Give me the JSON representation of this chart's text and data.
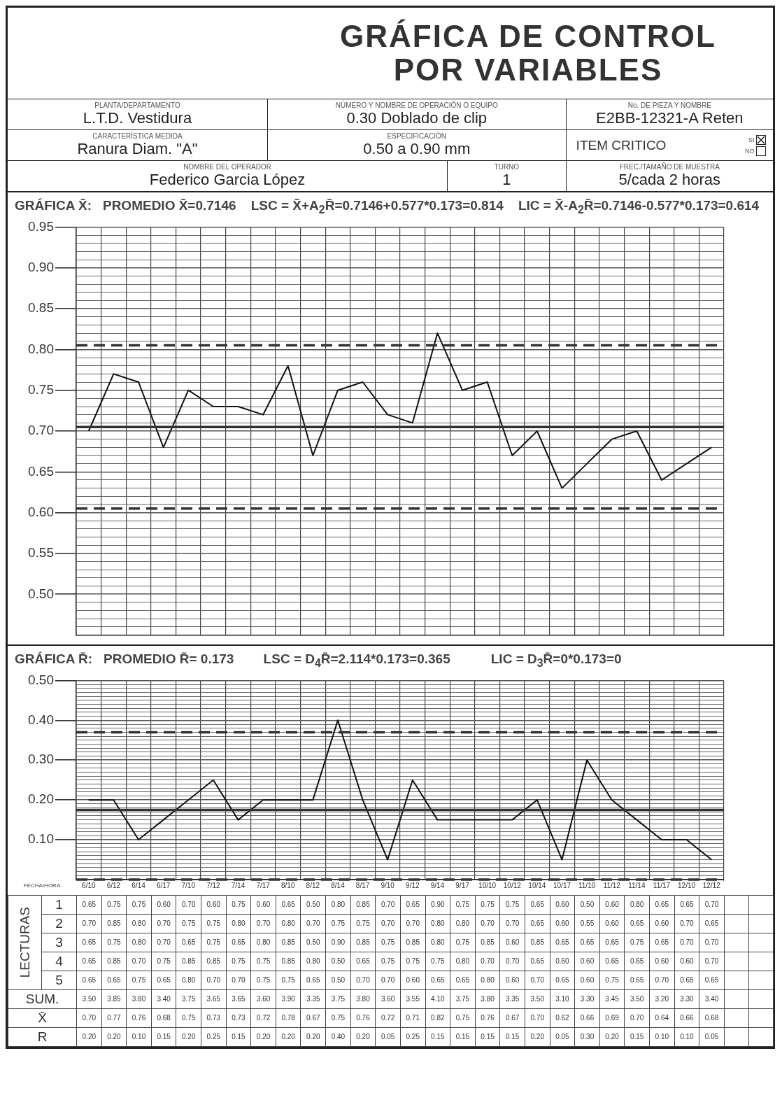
{
  "chart_data": [
    {
      "type": "other",
      "title": "GRÁFICA DE CONTROL POR VARIABLES",
      "annotations": [
        "PLANTA/DEPARTAMENTO",
        "L.T.D. Vestidura",
        "NÚMERO Y NOMBRE DE OPERACIÓN O EQUIPO",
        "0.30 Doblado de clip",
        "No. DE PIEZA Y NOMBRE",
        "E2BB-12321-A Reten",
        "CARACTERÍSTICA MEDIDA",
        "Ranura Diam. \"A\"",
        "ESPECIFICACIÓN",
        "0.50 a 0.90 mm",
        "ITEM CRITICO",
        "SI",
        "NO",
        "NOMBRE DEL OPERADOR",
        "Federico Garcia López",
        "TURNO",
        "1",
        "FREC./TAMAÑO DE MUESTRA",
        "5/cada 2 horas"
      ]
    },
    {
      "type": "line",
      "title": "GRÁFICA X̄:   PROMEDIO X̄=0.7146    LSC = X̄+A$_{2}$R̄=0.7146+0.577*0.173=0.814    LIC = X̄-A$_{2}$R̄=0.7146-0.577*0.173=0.614",
      "categories": [
        null,
        null,
        null,
        null,
        null,
        null,
        null,
        null,
        null,
        null,
        null,
        null,
        null,
        null,
        null,
        null,
        null,
        null,
        null,
        null,
        null,
        null,
        null,
        null,
        null,
        null
      ],
      "tick_labels": "y",
      "grid": true,
      "marker": "none",
      "line_style": "solid",
      "series": [
        {
          "color": "#111111",
          "values": [
            0.7,
            0.77,
            0.76,
            0.68,
            0.75,
            0.73,
            0.73,
            0.72,
            0.78,
            0.67,
            0.75,
            0.76,
            0.72,
            0.71,
            0.82,
            0.75,
            0.76,
            0.67,
            0.7,
            0.63,
            0.66,
            0.69,
            0.7,
            0.64,
            0.66,
            0.68
          ]
        }
      ],
      "ylim": [
        0.45,
        0.95
      ],
      "yticks": [
        {
          "value": 0.45,
          "label": null
        },
        {
          "value": 0.46,
          "label": null
        },
        {
          "value": 0.47,
          "label": null
        },
        {
          "value": 0.48,
          "label": null
        },
        {
          "value": 0.49,
          "label": null
        },
        {
          "value": 0.5,
          "label": "0.50"
        },
        {
          "value": 0.51,
          "label": null
        },
        {
          "value": 0.52,
          "label": null
        },
        {
          "value": 0.53,
          "label": null
        },
        {
          "value": 0.54,
          "label": null
        },
        0.55,
        {
          "value": 0.56,
          "label": null
        },
        {
          "value": 0.57,
          "label": null
        },
        {
          "value": 0.58,
          "label": null
        },
        {
          "value": 0.59,
          "label": null
        },
        {
          "value": 0.6,
          "label": "0.60"
        },
        {
          "value": 0.61,
          "label": null
        },
        {
          "value": 0.62,
          "label": null
        },
        {
          "value": 0.63,
          "label": null
        },
        {
          "value": 0.64,
          "label": null
        },
        0.65,
        {
          "value": 0.66,
          "label": null
        },
        {
          "value": 0.67,
          "label": null
        },
        {
          "value": 0.68,
          "label": null
        },
        {
          "value": 0.69,
          "label": null
        },
        {
          "value": 0.7,
          "label": "0.70"
        },
        {
          "value": 0.71,
          "label": null
        },
        {
          "value": 0.72,
          "label": null
        },
        {
          "value": 0.73,
          "label": null
        },
        {
          "value": 0.74,
          "label": null
        },
        0.75,
        {
          "value": 0.76,
          "label": null
        },
        {
          "value": 0.77,
          "label": null
        },
        {
          "value": 0.78,
          "label": null
        },
        {
          "value": 0.79,
          "label": null
        },
        {
          "value": 0.8,
          "label": "0.80"
        },
        {
          "value": 0.81,
          "label": null
        },
        {
          "value": 0.82,
          "label": null
        },
        {
          "value": 0.83,
          "label": null
        },
        {
          "value": 0.84,
          "label": null
        },
        0.85,
        {
          "value": 0.86,
          "label": null
        },
        {
          "value": 0.87,
          "label": null
        },
        {
          "value": 0.88,
          "label": null
        },
        {
          "value": 0.89,
          "label": null
        },
        {
          "value": 0.9,
          "label": "0.90"
        },
        {
          "value": 0.91,
          "label": null
        },
        {
          "value": 0.92,
          "label": null
        },
        {
          "value": 0.93,
          "label": null
        },
        {
          "value": 0.94,
          "label": null
        },
        0.95
      ],
      "ref_lines": [
        {
          "axis": "y",
          "value": 0.705,
          "line_style": "solid",
          "color": "#333333"
        },
        {
          "axis": "y",
          "value": 0.805,
          "line_style": "dashed",
          "color": "#333333"
        },
        {
          "axis": "y",
          "value": 0.605,
          "line_style": "dashed",
          "color": "#333333"
        }
      ]
    },
    {
      "type": "line",
      "title": "GRÁFICA R̄:   PROMEDIO R̄= 0.173        LSC = D$_{4}$R̄=2.114*0.173=0.365           LIC = D$_{3}$R̄=0*0.173=0",
      "xlabel": "FECHA/HORA",
      "categories": [
        "6/10",
        "6/12",
        "6/14",
        "6/17",
        "7/10",
        "7/12",
        "7/14",
        "7/17",
        "8/10",
        "8/12",
        "8/14",
        "8/17",
        "9/10",
        "9/12",
        "9/14",
        "9/17",
        "10/10",
        "10/12",
        "10/14",
        "10/17",
        "11/10",
        "11/12",
        "11/14",
        "11/17",
        "12/10",
        "12/12"
      ],
      "grid": true,
      "marker": "none",
      "line_style": "solid",
      "series": [
        {
          "color": "#111111",
          "values": [
            0.2,
            0.2,
            0.1,
            0.15,
            0.2,
            0.25,
            0.15,
            0.2,
            0.2,
            0.2,
            0.4,
            0.2,
            0.05,
            0.25,
            0.15,
            0.15,
            0.15,
            0.15,
            0.2,
            0.05,
            0.3,
            0.2,
            0.15,
            0.1,
            0.1,
            0.05
          ]
        }
      ],
      "ylim": [
        0,
        0.5
      ],
      "yticks": [
        {
          "value": 0,
          "label": null
        },
        {
          "value": 0.01,
          "label": null
        },
        {
          "value": 0.02,
          "label": null
        },
        {
          "value": 0.03,
          "label": null
        },
        {
          "value": 0.04,
          "label": null
        },
        {
          "value": 0.05,
          "label": null
        },
        {
          "value": 0.06,
          "label": null
        },
        {
          "value": 0.07,
          "label": null
        },
        {
          "value": 0.08,
          "label": null
        },
        {
          "value": 0.09,
          "label": null
        },
        {
          "value": 0.1,
          "label": "0.10"
        },
        {
          "value": 0.11,
          "label": null
        },
        {
          "value": 0.12,
          "label": null
        },
        {
          "value": 0.13,
          "label": null
        },
        {
          "value": 0.14,
          "label": null
        },
        {
          "value": 0.15,
          "label": null
        },
        {
          "value": 0.16,
          "label": null
        },
        {
          "value": 0.17,
          "label": null
        },
        {
          "value": 0.18,
          "label": null
        },
        {
          "value": 0.19,
          "label": null
        },
        {
          "value": 0.2,
          "label": "0.20"
        },
        {
          "value": 0.21,
          "label": null
        },
        {
          "value": 0.22,
          "label": null
        },
        {
          "value": 0.23,
          "label": null
        },
        {
          "value": 0.24,
          "label": null
        },
        {
          "value": 0.25,
          "label": null
        },
        {
          "value": 0.26,
          "label": null
        },
        {
          "value": 0.27,
          "label": null
        },
        {
          "value": 0.28,
          "label": null
        },
        {
          "value": 0.29,
          "label": null
        },
        {
          "value": 0.3,
          "label": "0.30"
        },
        {
          "value": 0.31,
          "label": null
        },
        {
          "value": 0.32,
          "label": null
        },
        {
          "value": 0.33,
          "label": null
        },
        {
          "value": 0.34,
          "label": null
        },
        {
          "value": 0.35,
          "label": null
        },
        {
          "value": 0.36,
          "label": null
        },
        {
          "value": 0.37,
          "label": null
        },
        {
          "value": 0.38,
          "label": null
        },
        {
          "value": 0.39,
          "label": null
        },
        {
          "value": 0.4,
          "label": "0.40"
        },
        {
          "value": 0.41,
          "label": null
        },
        {
          "value": 0.42,
          "label": null
        },
        {
          "value": 0.43,
          "label": null
        },
        {
          "value": 0.44,
          "label": null
        },
        {
          "value": 0.45,
          "label": null
        },
        {
          "value": 0.46,
          "label": null
        },
        {
          "value": 0.47,
          "label": null
        },
        {
          "value": 0.48,
          "label": null
        },
        {
          "value": 0.49,
          "label": null
        },
        {
          "value": 0.5,
          "label": "0.50"
        }
      ],
      "ref_lines": [
        {
          "axis": "y",
          "value": 0.175,
          "line_style": "solid",
          "color": "#333333"
        },
        {
          "axis": "y",
          "value": 0.37,
          "line_style": "dashed",
          "color": "#333333"
        },
        {
          "axis": "y",
          "value": 0,
          "line_style": "dashed",
          "color": "#333333"
        }
      ]
    },
    {
      "type": "heatmap",
      "ylabel": "LECTURAS",
      "categories": [
        null,
        null,
        null,
        null,
        null,
        null,
        null,
        null,
        null,
        null,
        null,
        null,
        null,
        null,
        null,
        null,
        null,
        null,
        null,
        null,
        null,
        null,
        null,
        null,
        null,
        null
      ],
      "y_categories": [
        "1",
        "2",
        "3",
        "4",
        "5",
        "SUM.",
        "X̄",
        "R"
      ],
      "cells": [
        [
          0.65,
          0.75,
          0.75,
          0.6,
          0.7,
          0.6,
          0.75,
          0.6,
          0.65,
          0.5,
          0.8,
          0.85,
          0.7,
          0.65,
          0.9,
          0.75,
          0.75,
          0.75,
          0.65,
          0.6,
          0.5,
          0.6,
          0.8,
          0.65,
          0.65,
          0.7
        ],
        [
          0.7,
          0.85,
          0.8,
          0.7,
          0.75,
          0.75,
          0.8,
          0.7,
          0.8,
          0.7,
          0.75,
          0.75,
          0.7,
          0.7,
          0.8,
          0.8,
          0.7,
          0.7,
          0.65,
          0.6,
          0.55,
          0.6,
          0.65,
          0.6,
          0.7,
          0.65
        ],
        [
          0.65,
          0.75,
          0.8,
          0.7,
          0.65,
          0.75,
          0.65,
          0.8,
          0.85,
          0.5,
          0.9,
          0.85,
          0.75,
          0.85,
          0.8,
          0.75,
          0.85,
          0.6,
          0.85,
          0.65,
          0.65,
          0.65,
          0.75,
          0.65,
          0.7,
          0.7
        ],
        [
          0.65,
          0.85,
          0.7,
          0.75,
          0.85,
          0.85,
          0.75,
          0.75,
          0.85,
          0.8,
          0.5,
          0.65,
          0.75,
          0.75,
          0.75,
          0.8,
          0.7,
          0.7,
          0.65,
          0.6,
          0.6,
          0.65,
          0.65,
          0.6,
          0.6,
          0.7
        ],
        [
          0.65,
          0.65,
          0.75,
          0.65,
          0.8,
          0.7,
          0.7,
          0.75,
          0.75,
          0.65,
          0.5,
          0.7,
          0.7,
          0.6,
          0.65,
          0.65,
          0.8,
          0.6,
          0.7,
          0.65,
          0.6,
          0.75,
          0.65,
          0.7,
          0.65,
          0.65
        ],
        [
          3.5,
          3.85,
          3.8,
          3.4,
          3.75,
          3.65,
          3.65,
          3.6,
          3.9,
          3.35,
          3.75,
          3.8,
          3.6,
          3.55,
          4.1,
          3.75,
          3.8,
          3.35,
          3.5,
          3.1,
          3.3,
          3.45,
          3.5,
          3.2,
          3.3,
          3.4
        ],
        [
          0.7,
          0.77,
          0.76,
          0.68,
          0.75,
          0.73,
          0.73,
          0.72,
          0.78,
          0.67,
          0.75,
          0.76,
          0.72,
          0.71,
          0.82,
          0.75,
          0.76,
          0.67,
          0.7,
          0.62,
          0.66,
          0.69,
          0.7,
          0.64,
          0.66,
          0.68
        ],
        [
          0.2,
          0.2,
          0.1,
          0.15,
          0.2,
          0.25,
          0.15,
          0.2,
          0.2,
          0.2,
          0.4,
          0.2,
          0.05,
          0.25,
          0.15,
          0.15,
          0.15,
          0.15,
          0.2,
          0.05,
          0.3,
          0.2,
          0.15,
          0.1,
          0.1,
          0.05
        ]
      ],
      "cell_labels": [
        [
          "0.65",
          "0.75",
          "0.75",
          "0.60",
          "0.70",
          "0.60",
          "0.75",
          "0.60",
          "0.65",
          "0.50",
          "0.80",
          "0.85",
          "0.70",
          "0.65",
          "0.90",
          "0.75",
          "0.75",
          "0.75",
          "0.65",
          "0.60",
          "0.50",
          "0.60",
          "0.80",
          "0.65",
          "0.65",
          "0.70"
        ],
        [
          "0.70",
          "0.85",
          "0.80",
          "0.70",
          "0.75",
          "0.75",
          "0.80",
          "0.70",
          "0.80",
          "0.70",
          "0.75",
          "0.75",
          "0.70",
          "0.70",
          "0.80",
          "0.80",
          "0.70",
          "0.70",
          "0.65",
          "0.60",
          "0.55",
          "0.60",
          "0.65",
          "0.60",
          "0.70",
          "0.65"
        ],
        [
          "0.65",
          "0.75",
          "0.80",
          "0.70",
          "0.65",
          "0.75",
          "0.65",
          "0.80",
          "0.85",
          "0.50",
          "0.90",
          "0.85",
          "0.75",
          "0.85",
          "0.80",
          "0.75",
          "0.85",
          "0.60",
          "0.85",
          "0.65",
          "0.65",
          "0.65",
          "0.75",
          "0.65",
          "0.70",
          "0.70"
        ],
        [
          "0.65",
          "0.85",
          "0.70",
          "0.75",
          "0.85",
          "0.85",
          "0.75",
          "0.75",
          "0.85",
          "0.80",
          "0.50",
          "0.65",
          "0.75",
          "0.75",
          "0.75",
          "0.80",
          "0.70",
          "0.70",
          "0.65",
          "0.60",
          "0.60",
          "0.65",
          "0.65",
          "0.60",
          "0.60",
          "0.70"
        ],
        [
          "0.65",
          "0.65",
          "0.75",
          "0.65",
          "0.80",
          "0.70",
          "0.70",
          "0.75",
          "0.75",
          "0.65",
          "0.50",
          "0.70",
          "0.70",
          "0.60",
          "0.65",
          "0.65",
          "0.80",
          "0.60",
          "0.70",
          "0.65",
          "0.60",
          "0.75",
          "0.65",
          "0.70",
          "0.65",
          "0.65"
        ],
        [
          "3.50",
          "3.85",
          "3.80",
          "3.40",
          "3.75",
          "3.65",
          "3.65",
          "3.60",
          "3.90",
          "3.35",
          "3.75",
          "3.80",
          "3.60",
          "3.55",
          "4.10",
          "3.75",
          "3.80",
          "3.35",
          "3.50",
          "3.10",
          "3.30",
          "3.45",
          "3.50",
          "3.20",
          "3.30",
          "3.40"
        ],
        [
          "0.70",
          "0.77",
          "0.76",
          "0.68",
          "0.75",
          "0.73",
          "0.73",
          "0.72",
          "0.78",
          "0.67",
          "0.75",
          "0.76",
          "0.72",
          "0.71",
          "0.82",
          "0.75",
          "0.76",
          "0.67",
          "0.70",
          "0.62",
          "0.66",
          "0.69",
          "0.70",
          "0.64",
          "0.66",
          "0.68"
        ],
        [
          "0.20",
          "0.20",
          "0.10",
          "0.15",
          "0.20",
          "0.25",
          "0.15",
          "0.20",
          "0.20",
          "0.20",
          "0.40",
          "0.20",
          "0.05",
          "0.25",
          "0.15",
          "0.15",
          "0.15",
          "0.15",
          "0.20",
          "0.05",
          "0.30",
          "0.20",
          "0.15",
          "0.10",
          "0.10",
          "0.05"
        ]
      ]
    }
  ]
}
